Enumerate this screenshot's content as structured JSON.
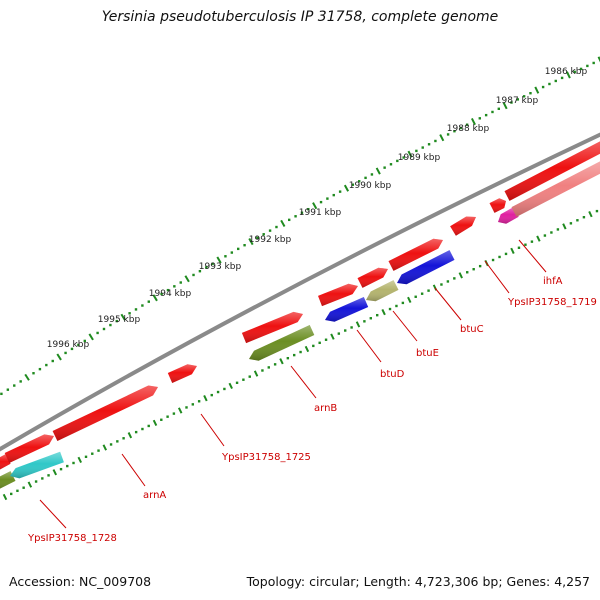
{
  "title": "Yersinia pseudotuberculosis IP 31758, complete genome",
  "footer": {
    "accession": "Accession: NC_009708",
    "topology": "Topology: circular; Length: 4,723,306 bp; Genes: 4,257"
  },
  "scale_labels": [
    "1986 kbp",
    "1987 kbp",
    "1988 kbp",
    "1989 kbp",
    "1990 kbp",
    "1991 kbp",
    "1992 kbp",
    "1993 kbp",
    "1994 kbp",
    "1995 kbp",
    "1996 kbp"
  ],
  "gene_labels": [
    "ihfA",
    "YpsIP31758_1719",
    "btuC",
    "btuE",
    "btuD",
    "arnB",
    "YpsIP31758_1725",
    "arnA",
    "YpsIP31758_1728"
  ],
  "colors": {
    "forward_gene": "#ee1111",
    "backbone": "#808080",
    "tick": "#1f8a1f",
    "label": "#cc0000",
    "btuC_btuD": "#1414d8",
    "btuE": "#b4b46e",
    "arnB": "#6b8e23",
    "YpsIP31758_1728": "#30c8c8",
    "ihfA": "#e020a0",
    "ihfA_neighbor": "#f08080"
  }
}
